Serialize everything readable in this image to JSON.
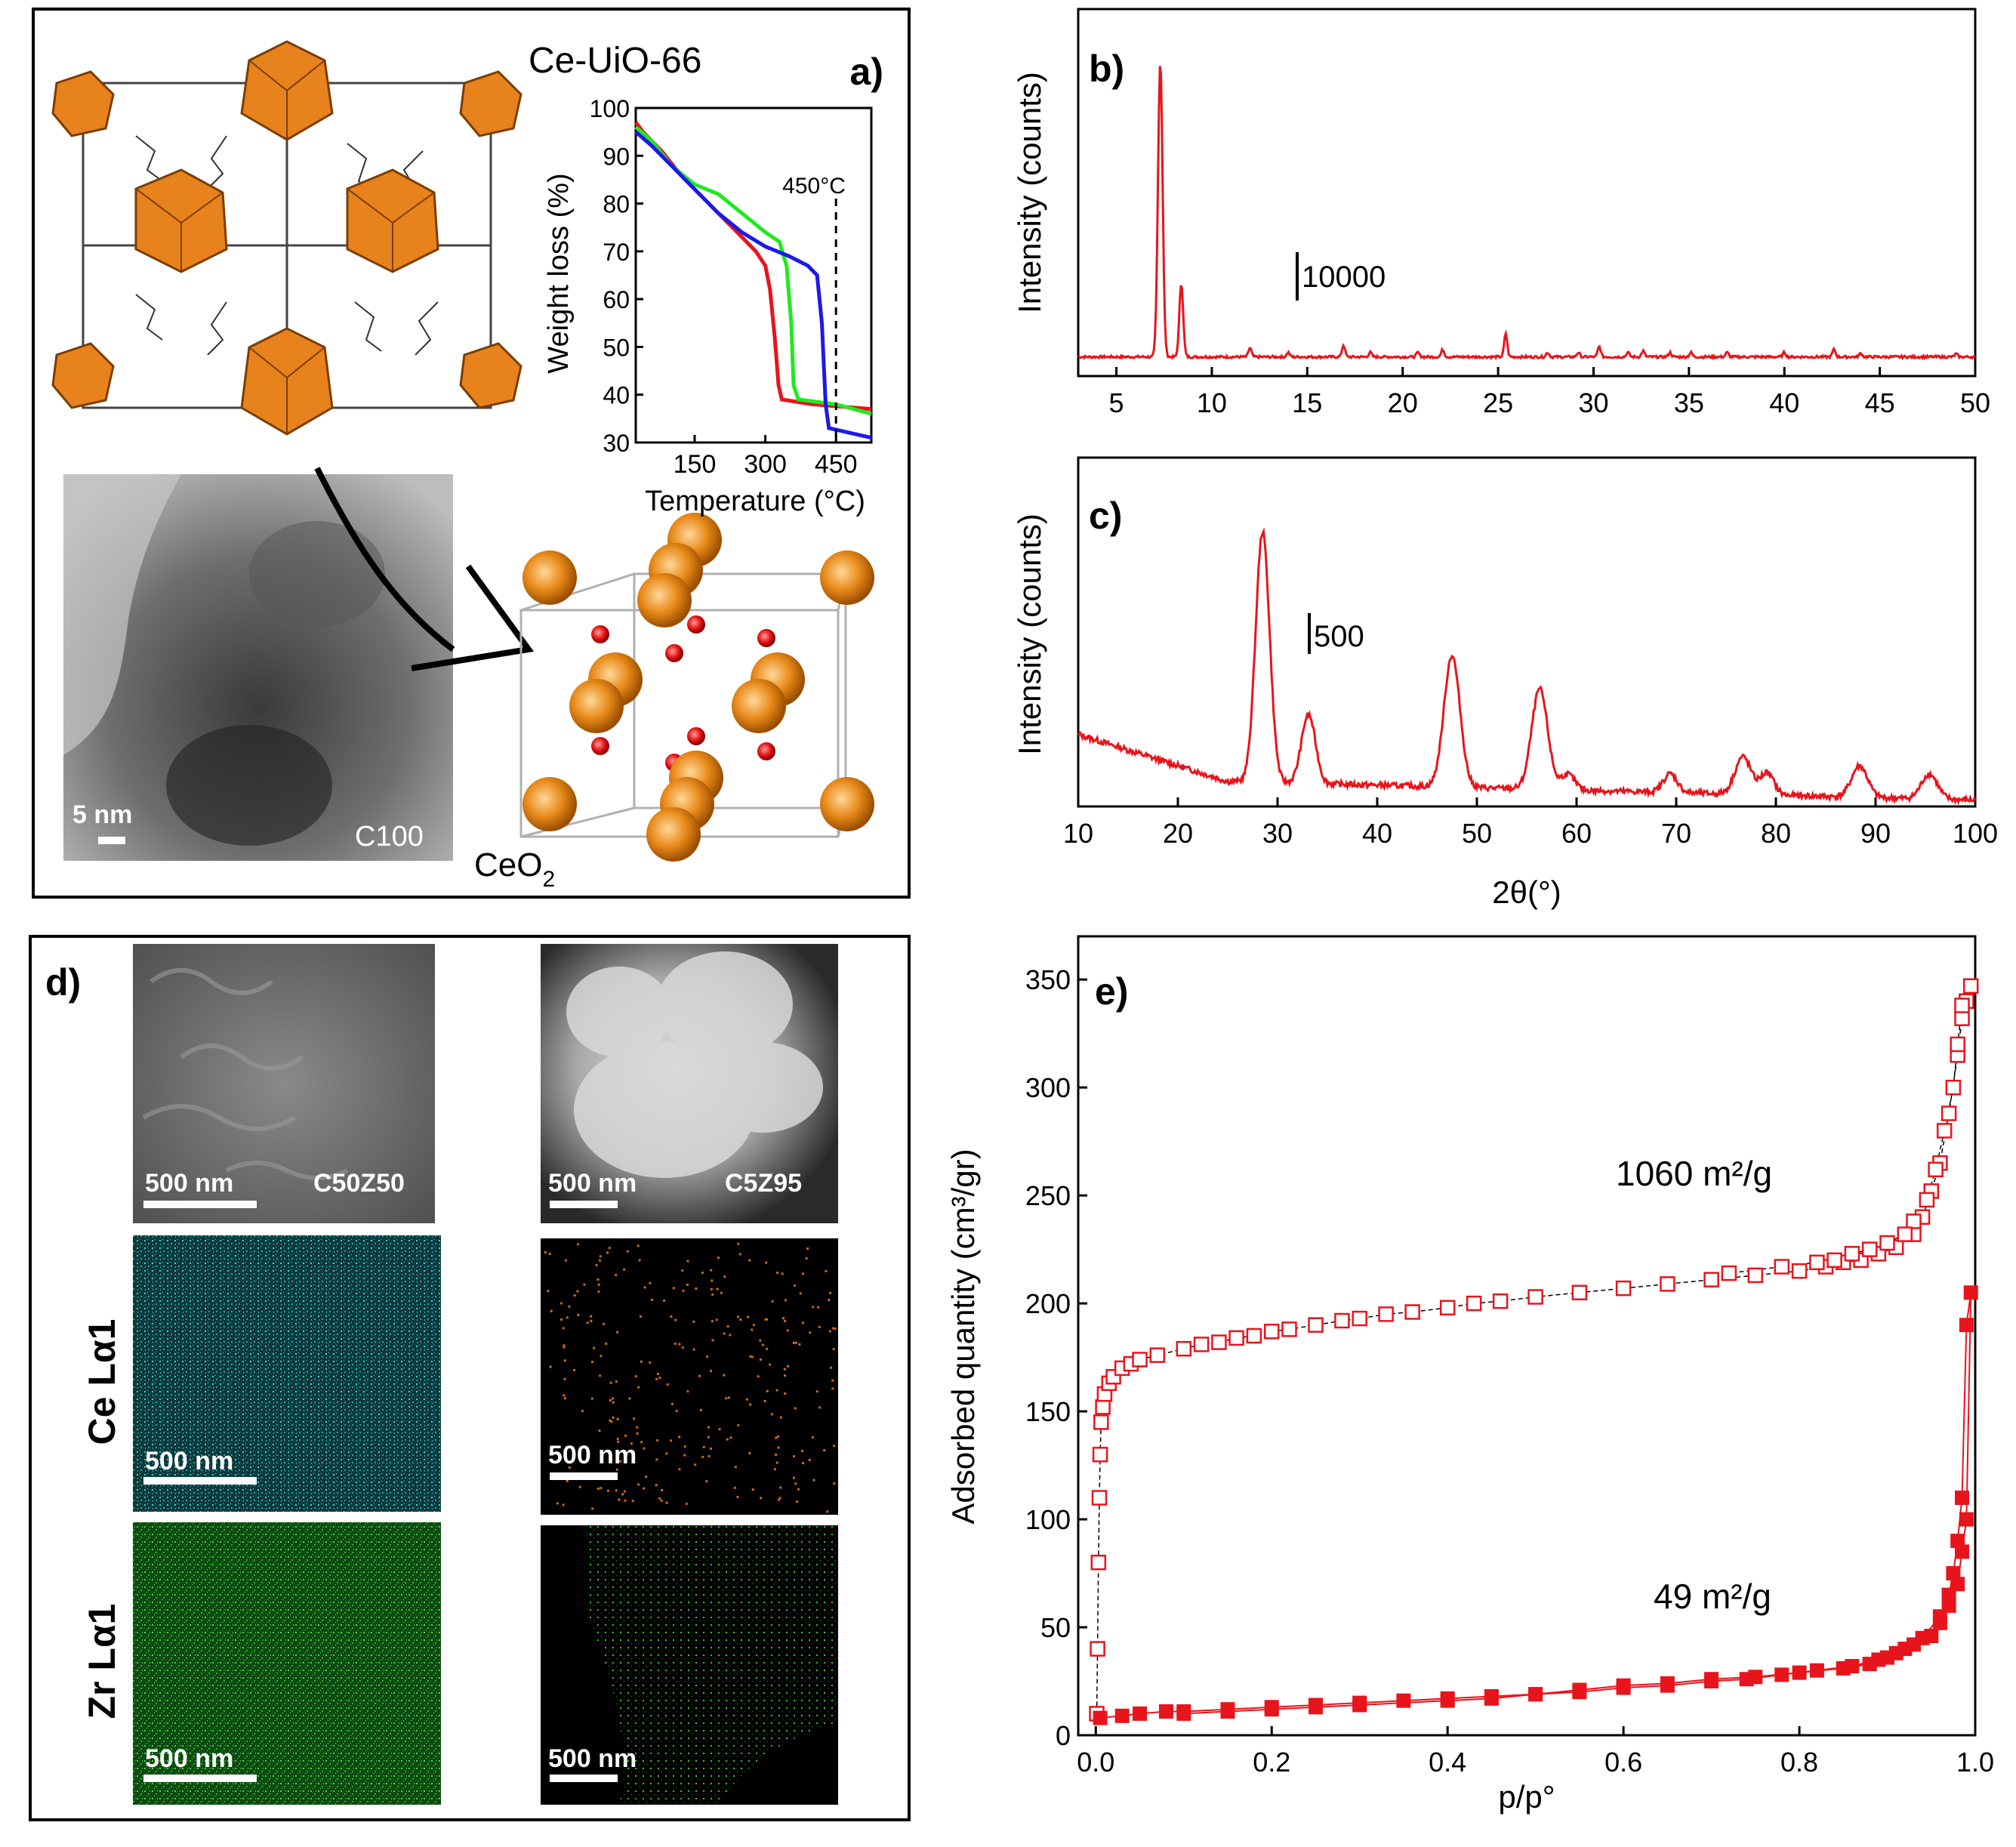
{
  "panel_a": {
    "label": "a)",
    "mof_title": "Ce-UiO-66",
    "tem_scalebar": "5 nm",
    "tem_sample": "C100",
    "oxide_name": "CeO",
    "oxide_sub": "2",
    "tga_marker": "450°C"
  },
  "panel_d": {
    "label": "d)",
    "row_ce_label": "Ce Lα1",
    "row_zr_label": "Zr Lα1",
    "scalebar": "500 nm",
    "left_sample": "C50Z50",
    "right_sample": "C5Z95"
  },
  "chart_data": [
    {
      "id": "a_tga",
      "type": "line",
      "xlabel": "Temperature (°C)",
      "ylabel": "Weight loss (%)",
      "xlim": [
        25,
        525
      ],
      "ylim": [
        30,
        100
      ],
      "xticks": [
        150,
        300,
        450
      ],
      "yticks": [
        30,
        40,
        50,
        60,
        70,
        80,
        90,
        100
      ],
      "annotation": "450°C",
      "series": [
        {
          "name": "red",
          "color": "#e8141c",
          "points": [
            [
              25,
              97
            ],
            [
              40,
              95
            ],
            [
              80,
              91
            ],
            [
              120,
              86
            ],
            [
              160,
              82
            ],
            [
              200,
              78
            ],
            [
              240,
              74
            ],
            [
              280,
              70
            ],
            [
              300,
              67
            ],
            [
              310,
              62
            ],
            [
              320,
              52
            ],
            [
              328,
              42
            ],
            [
              335,
              39
            ],
            [
              400,
              38
            ],
            [
              525,
              37
            ]
          ]
        },
        {
          "name": "green",
          "color": "#22e822",
          "points": [
            [
              25,
              96
            ],
            [
              60,
              93
            ],
            [
              100,
              88
            ],
            [
              150,
              84
            ],
            [
              200,
              82
            ],
            [
              250,
              78
            ],
            [
              300,
              74
            ],
            [
              330,
              72
            ],
            [
              345,
              67
            ],
            [
              355,
              55
            ],
            [
              360,
              42
            ],
            [
              370,
              39
            ],
            [
              450,
              38
            ],
            [
              525,
              36
            ]
          ]
        },
        {
          "name": "blue",
          "color": "#1a1ae8",
          "points": [
            [
              25,
              95
            ],
            [
              60,
              92
            ],
            [
              100,
              88
            ],
            [
              150,
              83
            ],
            [
              200,
              78
            ],
            [
              250,
              74
            ],
            [
              300,
              71
            ],
            [
              350,
              69
            ],
            [
              390,
              67
            ],
            [
              410,
              65
            ],
            [
              420,
              55
            ],
            [
              428,
              38
            ],
            [
              435,
              33
            ],
            [
              480,
              32
            ],
            [
              525,
              31
            ]
          ]
        }
      ]
    },
    {
      "id": "b_xrd",
      "type": "line",
      "title": "b)",
      "ylabel": "Intensity (counts)",
      "xlim": [
        3,
        50
      ],
      "xticks": [
        5,
        10,
        15,
        20,
        25,
        30,
        35,
        40,
        45,
        50
      ],
      "scale_label": "10000",
      "baseline": 8,
      "peaks": [
        [
          7.3,
          100,
          0.12
        ],
        [
          8.4,
          25,
          0.1
        ],
        [
          12,
          3,
          0.08
        ],
        [
          14,
          1.5,
          0.08
        ],
        [
          16.9,
          4,
          0.08
        ],
        [
          18.3,
          1.5,
          0.08
        ],
        [
          20.8,
          1.5,
          0.08
        ],
        [
          22.1,
          2.5,
          0.08
        ],
        [
          25.4,
          8,
          0.08
        ],
        [
          27.6,
          1.5,
          0.08
        ],
        [
          29.2,
          1.5,
          0.08
        ],
        [
          30.3,
          3.5,
          0.08
        ],
        [
          31.8,
          1.5,
          0.08
        ],
        [
          32.6,
          2,
          0.08
        ],
        [
          34,
          1.5,
          0.08
        ],
        [
          35.1,
          1.5,
          0.08
        ],
        [
          37,
          1.5,
          0.08
        ],
        [
          40,
          1.5,
          0.08
        ],
        [
          42.6,
          2.5,
          0.08
        ],
        [
          44,
          1.2,
          0.08
        ],
        [
          49,
          1,
          0.08
        ]
      ]
    },
    {
      "id": "c_xrd",
      "type": "line",
      "title": "c)",
      "ylabel": "Intensity (counts)",
      "xlabel": "2θ(°)",
      "xlim": [
        10,
        100
      ],
      "xticks": [
        10,
        20,
        30,
        40,
        50,
        60,
        70,
        80,
        90,
        100
      ],
      "scale_label": "500",
      "peaks": [
        [
          28.5,
          80,
          0.7
        ],
        [
          33.1,
          22,
          0.7
        ],
        [
          47.5,
          42,
          0.8
        ],
        [
          56.3,
          32,
          0.8
        ],
        [
          59.1,
          5,
          0.7
        ],
        [
          69.4,
          6,
          0.7
        ],
        [
          76.7,
          12,
          0.8
        ],
        [
          79.1,
          7,
          0.7
        ],
        [
          88.4,
          10,
          0.8
        ],
        [
          95.4,
          8,
          0.8
        ]
      ]
    },
    {
      "id": "e_bet",
      "type": "scatter",
      "title": "e)",
      "xlabel": "p/p°",
      "ylabel": "Adsorbed quantity (cm³/gr)",
      "xlim": [
        -0.02,
        1.0
      ],
      "ylim": [
        0,
        370
      ],
      "xticks": [
        0.0,
        0.2,
        0.4,
        0.6,
        0.8,
        1.0
      ],
      "yticks": [
        0,
        50,
        100,
        150,
        200,
        250,
        300,
        350
      ],
      "annotations": [
        "1060 m²/g",
        "49 m²/g"
      ],
      "series": [
        {
          "name": "1060 m²/g",
          "marker": "open-square",
          "color": "#e8141c",
          "points": [
            [
              0.001,
              10
            ],
            [
              0.002,
              40
            ],
            [
              0.003,
              80
            ],
            [
              0.004,
              110
            ],
            [
              0.005,
              130
            ],
            [
              0.006,
              145
            ],
            [
              0.008,
              152
            ],
            [
              0.01,
              158
            ],
            [
              0.015,
              163
            ],
            [
              0.02,
              166
            ],
            [
              0.03,
              170
            ],
            [
              0.04,
              172
            ],
            [
              0.05,
              174
            ],
            [
              0.07,
              176
            ],
            [
              0.1,
              179
            ],
            [
              0.12,
              181
            ],
            [
              0.14,
              182
            ],
            [
              0.16,
              184
            ],
            [
              0.18,
              185
            ],
            [
              0.2,
              187
            ],
            [
              0.22,
              188
            ],
            [
              0.25,
              190
            ],
            [
              0.28,
              192
            ],
            [
              0.3,
              193
            ],
            [
              0.33,
              195
            ],
            [
              0.36,
              196
            ],
            [
              0.4,
              198
            ],
            [
              0.43,
              200
            ],
            [
              0.46,
              201
            ],
            [
              0.5,
              203
            ],
            [
              0.55,
              205
            ],
            [
              0.6,
              207
            ],
            [
              0.65,
              209
            ],
            [
              0.7,
              211
            ],
            [
              0.75,
              213
            ],
            [
              0.8,
              215
            ],
            [
              0.83,
              217
            ],
            [
              0.85,
              219
            ],
            [
              0.87,
              220
            ],
            [
              0.89,
              223
            ],
            [
              0.91,
              226
            ],
            [
              0.93,
              232
            ],
            [
              0.94,
              240
            ],
            [
              0.95,
              252
            ],
            [
              0.96,
              265
            ],
            [
              0.97,
              288
            ],
            [
              0.98,
              315
            ],
            [
              0.985,
              332
            ],
            [
              0.99,
              340
            ],
            [
              0.995,
              347
            ],
            [
              0.985,
              338
            ],
            [
              0.98,
              320
            ],
            [
              0.975,
              300
            ],
            [
              0.965,
              280
            ],
            [
              0.955,
              262
            ],
            [
              0.945,
              248
            ],
            [
              0.93,
              238
            ],
            [
              0.92,
              232
            ],
            [
              0.9,
              228
            ],
            [
              0.88,
              225
            ],
            [
              0.86,
              223
            ],
            [
              0.84,
              220
            ],
            [
              0.82,
              219
            ],
            [
              0.78,
              217
            ],
            [
              0.72,
              214
            ]
          ]
        },
        {
          "name": "49 m²/g",
          "marker": "filled-square",
          "color": "#e8141c",
          "points": [
            [
              0.005,
              8
            ],
            [
              0.03,
              9
            ],
            [
              0.05,
              10
            ],
            [
              0.08,
              11
            ],
            [
              0.1,
              11
            ],
            [
              0.15,
              12
            ],
            [
              0.2,
              13
            ],
            [
              0.25,
              14
            ],
            [
              0.3,
              15
            ],
            [
              0.35,
              16
            ],
            [
              0.4,
              17
            ],
            [
              0.45,
              18
            ],
            [
              0.5,
              19
            ],
            [
              0.55,
              21
            ],
            [
              0.6,
              23
            ],
            [
              0.65,
              24
            ],
            [
              0.7,
              26
            ],
            [
              0.75,
              27
            ],
            [
              0.8,
              29
            ],
            [
              0.85,
              31
            ],
            [
              0.88,
              33
            ],
            [
              0.9,
              36
            ],
            [
              0.92,
              40
            ],
            [
              0.94,
              45
            ],
            [
              0.96,
              55
            ],
            [
              0.97,
              65
            ],
            [
              0.975,
              75
            ],
            [
              0.98,
              90
            ],
            [
              0.985,
              110
            ],
            [
              0.99,
              190
            ],
            [
              0.995,
              205
            ],
            [
              0.99,
              100
            ],
            [
              0.985,
              85
            ],
            [
              0.98,
              70
            ],
            [
              0.97,
              60
            ],
            [
              0.96,
              52
            ],
            [
              0.95,
              46
            ],
            [
              0.93,
              42
            ],
            [
              0.91,
              38
            ],
            [
              0.89,
              35
            ],
            [
              0.86,
              32
            ],
            [
              0.82,
              30
            ],
            [
              0.78,
              28
            ],
            [
              0.74,
              26
            ],
            [
              0.7,
              25
            ],
            [
              0.65,
              23
            ],
            [
              0.6,
              22
            ],
            [
              0.55,
              20
            ],
            [
              0.5,
              19
            ],
            [
              0.45,
              17
            ],
            [
              0.4,
              16
            ],
            [
              0.3,
              14
            ],
            [
              0.25,
              13
            ],
            [
              0.2,
              12
            ],
            [
              0.15,
              11
            ],
            [
              0.1,
              10
            ]
          ]
        }
      ]
    }
  ]
}
